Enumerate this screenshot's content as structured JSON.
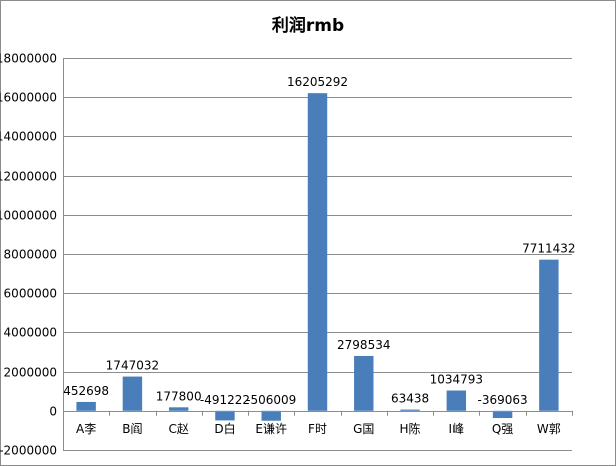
{
  "chart_data": {
    "type": "bar",
    "title": "利润rmb",
    "xlabel": "",
    "ylabel": "",
    "ylim": [
      -2000000,
      18000000
    ],
    "ytick_step": 2000000,
    "grid": true,
    "legend": "none",
    "bar_color": "#4a7ebb",
    "categories": [
      "A李",
      "B阎",
      "C赵",
      "D白",
      "E谦许",
      "F时",
      "G国",
      "H陈",
      "I峰",
      "Q强",
      "W郭"
    ],
    "values": [
      452698,
      1747032,
      177800,
      -491222,
      -506009,
      16205292,
      2798534,
      63438,
      1034793,
      -369063,
      7711432
    ],
    "data_labels": [
      "452698",
      "1747032",
      "177800",
      "-491222",
      "-506009",
      "16205292",
      "2798534",
      "63438",
      "1034793",
      "-369063",
      "7711432"
    ]
  }
}
